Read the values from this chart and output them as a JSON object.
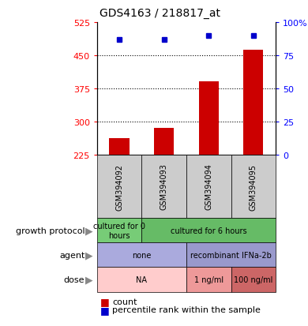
{
  "title": "GDS4163 / 218817_at",
  "samples": [
    "GSM394092",
    "GSM394093",
    "GSM394094",
    "GSM394095"
  ],
  "counts": [
    262,
    285,
    390,
    462
  ],
  "percentile_ranks": [
    87,
    87,
    90,
    90
  ],
  "ylim_left": [
    225,
    525
  ],
  "ylim_right": [
    0,
    100
  ],
  "yticks_left": [
    225,
    300,
    375,
    450,
    525
  ],
  "yticks_right": [
    0,
    25,
    50,
    75,
    100
  ],
  "ytick_right_labels": [
    "0",
    "25",
    "50",
    "75",
    "100%"
  ],
  "bar_color": "#cc0000",
  "dot_color": "#0000cc",
  "bar_bottom": 225,
  "gp_data": [
    [
      "cultured for 0\nhours",
      0,
      1
    ],
    [
      "cultured for 6 hours",
      1,
      4
    ]
  ],
  "gp_colors": {
    "cultured for 0\nhours": "#77cc77",
    "cultured for 6 hours": "#66bb66"
  },
  "agent_data": [
    [
      "none",
      0,
      2
    ],
    [
      "recombinant IFNa-2b",
      2,
      4
    ]
  ],
  "agent_colors": {
    "none": "#aaaadd",
    "recombinant IFNa-2b": "#9999cc"
  },
  "dose_data": [
    [
      "NA",
      0,
      2
    ],
    [
      "1 ng/ml",
      2,
      3
    ],
    [
      "100 ng/ml",
      3,
      4
    ]
  ],
  "dose_colors": {
    "NA": "#ffcccc",
    "1 ng/ml": "#ee9999",
    "100 ng/ml": "#cc6666"
  },
  "background_color": "#ffffff",
  "legend_count_color": "#cc0000",
  "legend_dot_color": "#0000cc",
  "hline_values": [
    300,
    375,
    450
  ],
  "sample_bg_color": "#cccccc",
  "row_labels": [
    "growth protocol",
    "agent",
    "dose"
  ]
}
